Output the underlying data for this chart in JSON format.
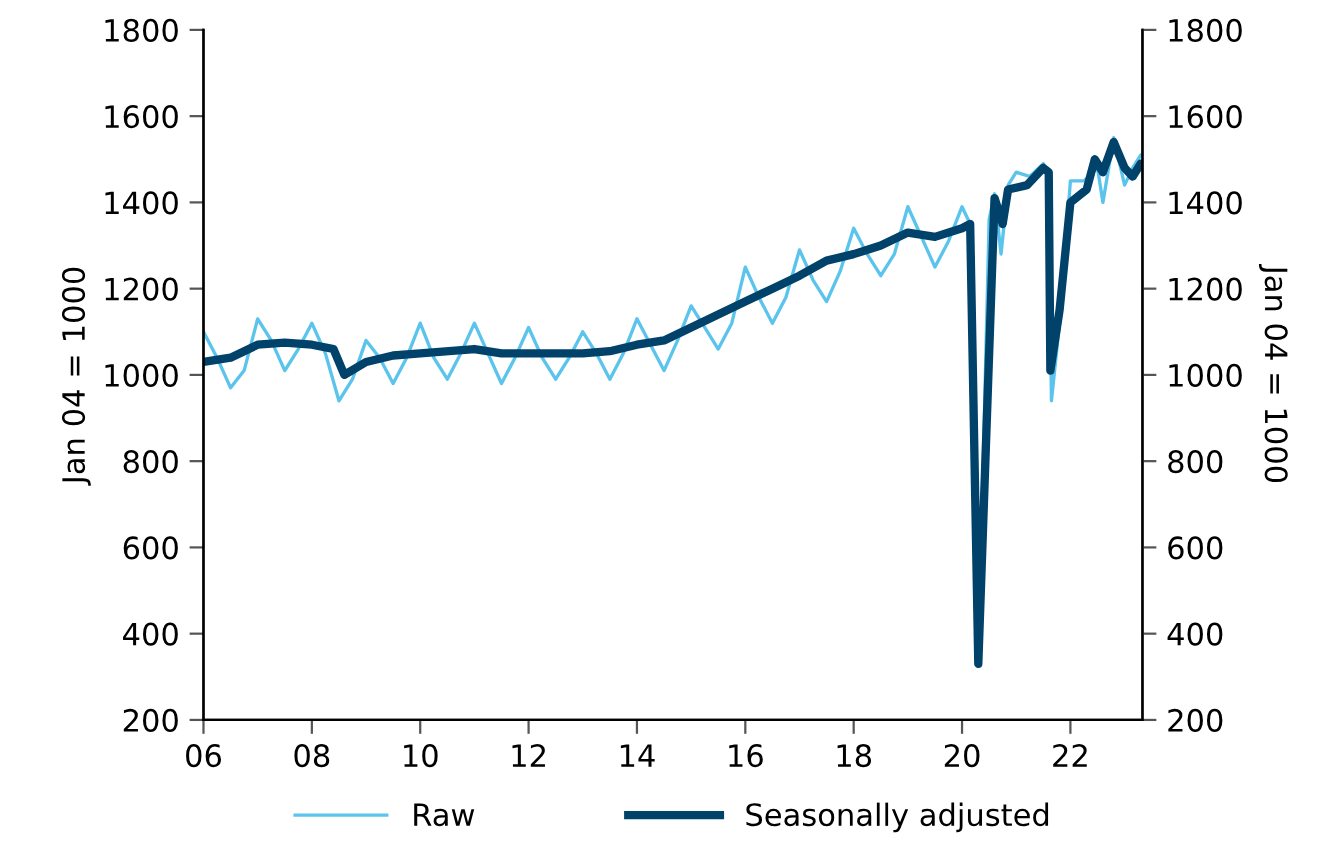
{
  "chart_data": {
    "type": "line",
    "ylabel": "Jan 04 = 1000",
    "y2label": "Jan 04 = 1000",
    "xlim": [
      2006,
      2023.33
    ],
    "xticks": [
      {
        "value": 2006,
        "label": "06"
      },
      {
        "value": 2008,
        "label": "08"
      },
      {
        "value": 2010,
        "label": "10"
      },
      {
        "value": 2012,
        "label": "12"
      },
      {
        "value": 2014,
        "label": "14"
      },
      {
        "value": 2016,
        "label": "16"
      },
      {
        "value": 2018,
        "label": "18"
      },
      {
        "value": 2020,
        "label": "20"
      },
      {
        "value": 2022,
        "label": "22"
      }
    ],
    "ylim": [
      200,
      1800
    ],
    "yticks": [
      200,
      400,
      600,
      800,
      1000,
      1200,
      1400,
      1600,
      1800
    ],
    "y2lim": [
      200,
      1800
    ],
    "y2ticks": [
      200,
      400,
      600,
      800,
      1000,
      1200,
      1400,
      1600,
      1800
    ],
    "legend": "bottom",
    "grid": false,
    "series": [
      {
        "name": "Raw",
        "color": "#5bc4ec",
        "x": [
          2006,
          2006.25,
          2006.5,
          2006.75,
          2007,
          2007.25,
          2007.5,
          2007.75,
          2008,
          2008.25,
          2008.5,
          2008.75,
          2009,
          2009.25,
          2009.5,
          2009.75,
          2010,
          2010.25,
          2010.5,
          2010.75,
          2011,
          2011.25,
          2011.5,
          2011.75,
          2012,
          2012.25,
          2012.5,
          2012.75,
          2013,
          2013.25,
          2013.5,
          2013.75,
          2014,
          2014.25,
          2014.5,
          2014.75,
          2015,
          2015.25,
          2015.5,
          2015.75,
          2016,
          2016.25,
          2016.5,
          2016.75,
          2017,
          2017.25,
          2017.5,
          2017.75,
          2018,
          2018.25,
          2018.5,
          2018.75,
          2019,
          2019.25,
          2019.5,
          2019.75,
          2020,
          2020.15,
          2020.3,
          2020.5,
          2020.6,
          2020.72,
          2020.85,
          2021,
          2021.25,
          2021.5,
          2021.6,
          2021.65,
          2021.8,
          2022,
          2022.25,
          2022.5,
          2022.6,
          2022.8,
          2023,
          2023.15,
          2023.3
        ],
        "values": [
          1100,
          1040,
          970,
          1010,
          1130,
          1080,
          1010,
          1060,
          1120,
          1050,
          940,
          990,
          1080,
          1040,
          980,
          1040,
          1120,
          1040,
          990,
          1050,
          1120,
          1050,
          980,
          1040,
          1110,
          1040,
          990,
          1040,
          1100,
          1050,
          990,
          1050,
          1130,
          1070,
          1010,
          1080,
          1160,
          1110,
          1060,
          1120,
          1250,
          1180,
          1120,
          1180,
          1290,
          1220,
          1170,
          1240,
          1340,
          1280,
          1230,
          1280,
          1390,
          1320,
          1250,
          1310,
          1390,
          1350,
          330,
          1360,
          1420,
          1280,
          1440,
          1470,
          1460,
          1490,
          1460,
          940,
          1120,
          1450,
          1450,
          1480,
          1400,
          1550,
          1440,
          1480,
          1510
        ]
      },
      {
        "name": "Seasonally adjusted",
        "color": "#00426a",
        "x": [
          2006,
          2006.5,
          2007,
          2007.5,
          2008,
          2008.4,
          2008.6,
          2009,
          2009.5,
          2010,
          2011,
          2011.5,
          2012,
          2013,
          2013.5,
          2014,
          2014.5,
          2015,
          2015.5,
          2016,
          2016.5,
          2017,
          2017.5,
          2018,
          2018.5,
          2019,
          2019.5,
          2020,
          2020.15,
          2020.3,
          2020.6,
          2020.75,
          2020.85,
          2021.2,
          2021.5,
          2021.6,
          2021.63,
          2021.8,
          2022,
          2022.3,
          2022.45,
          2022.6,
          2022.8,
          2023,
          2023.15,
          2023.3
        ],
        "values": [
          1030,
          1040,
          1070,
          1075,
          1070,
          1060,
          1000,
          1030,
          1045,
          1050,
          1060,
          1050,
          1050,
          1050,
          1055,
          1070,
          1080,
          1110,
          1140,
          1170,
          1200,
          1230,
          1265,
          1280,
          1300,
          1330,
          1320,
          1340,
          1350,
          330,
          1410,
          1350,
          1430,
          1440,
          1480,
          1470,
          1010,
          1150,
          1400,
          1430,
          1500,
          1470,
          1540,
          1480,
          1460,
          1490
        ]
      }
    ]
  }
}
